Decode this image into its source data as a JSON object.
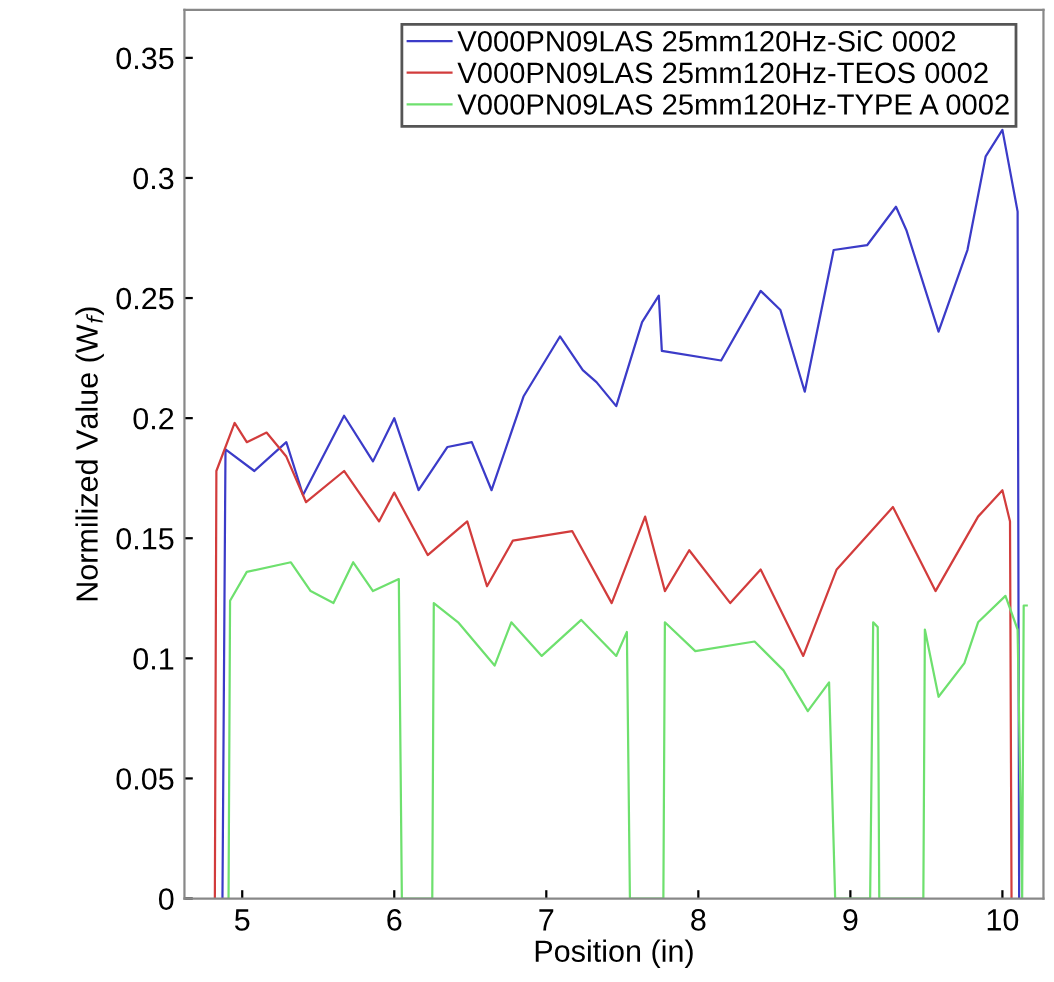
{
  "chart_data": {
    "type": "line",
    "xlabel": "Position (in)",
    "ylabel": "Normilized Value (W$_{f}$)",
    "xlim": [
      4.62,
      10.27
    ],
    "ylim": [
      0,
      0.37
    ],
    "xticks": [
      5,
      6,
      7,
      8,
      9,
      10
    ],
    "yticks": [
      0,
      0.05,
      0.1,
      0.15,
      0.2,
      0.25,
      0.3,
      0.35
    ],
    "grid": false,
    "legend": "top right",
    "marker": "none",
    "line_style": "solid",
    "series": [
      {
        "name": "V000PN09LAS 25mm120Hz-SiC 0002",
        "color": "#3b3bc8",
        "x": [
          4.87,
          4.89,
          5.08,
          5.29,
          5.4,
          5.67,
          5.86,
          6.0,
          6.16,
          6.35,
          6.51,
          6.64,
          6.85,
          7.09,
          7.24,
          7.33,
          7.46,
          7.63,
          7.74,
          7.76,
          8.15,
          8.41,
          8.54,
          8.7,
          8.89,
          9.11,
          9.3,
          9.37,
          9.58,
          9.77,
          9.89,
          10.0,
          10.1,
          10.11
        ],
        "values": [
          0,
          0.187,
          0.178,
          0.19,
          0.168,
          0.201,
          0.182,
          0.2,
          0.17,
          0.188,
          0.19,
          0.17,
          0.209,
          0.234,
          0.22,
          0.215,
          0.205,
          0.24,
          0.251,
          0.228,
          0.224,
          0.253,
          0.245,
          0.211,
          0.27,
          0.272,
          0.288,
          0.278,
          0.236,
          0.27,
          0.309,
          0.32,
          0.286,
          0
        ]
      },
      {
        "name": "V000PN09LAS 25mm120Hz-TEOS 0002",
        "color": "#d23c3c",
        "x": [
          4.82,
          4.83,
          4.95,
          5.03,
          5.16,
          5.29,
          5.42,
          5.67,
          5.9,
          6.0,
          6.22,
          6.48,
          6.61,
          6.78,
          7.17,
          7.43,
          7.65,
          7.78,
          7.94,
          8.21,
          8.41,
          8.69,
          8.91,
          9.28,
          9.56,
          9.84,
          10.0,
          10.05,
          10.06
        ],
        "values": [
          0,
          0.178,
          0.198,
          0.19,
          0.194,
          0.184,
          0.165,
          0.178,
          0.157,
          0.169,
          0.143,
          0.157,
          0.13,
          0.149,
          0.153,
          0.123,
          0.159,
          0.128,
          0.145,
          0.123,
          0.137,
          0.101,
          0.137,
          0.163,
          0.128,
          0.159,
          0.17,
          0.157,
          0
        ]
      },
      {
        "name": "V000PN09LAS 25mm120Hz-TYPE A 0002",
        "color": "#6ee06e",
        "x": [
          4.91,
          4.92,
          5.03,
          5.32,
          5.45,
          5.6,
          5.73,
          5.86,
          6.03,
          6.05,
          6.25,
          6.26,
          6.42,
          6.66,
          6.77,
          6.97,
          7.23,
          7.46,
          7.53,
          7.55,
          7.77,
          7.78,
          7.98,
          8.37,
          8.56,
          8.72,
          8.86,
          8.9,
          9.13,
          9.15,
          9.18,
          9.19,
          9.48,
          9.49,
          9.58,
          9.75,
          9.84,
          10.02,
          10.1,
          10.13,
          10.14,
          10.16
        ],
        "values": [
          0,
          0.124,
          0.136,
          0.14,
          0.128,
          0.123,
          0.14,
          0.128,
          0.133,
          0,
          0,
          0.123,
          0.115,
          0.097,
          0.115,
          0.101,
          0.116,
          0.101,
          0.111,
          0,
          0,
          0.115,
          0.103,
          0.107,
          0.095,
          0.078,
          0.09,
          0,
          0,
          0.115,
          0.113,
          0,
          0,
          0.112,
          0.084,
          0.098,
          0.115,
          0.126,
          0.112,
          0,
          0.122,
          0.122
        ]
      }
    ]
  }
}
